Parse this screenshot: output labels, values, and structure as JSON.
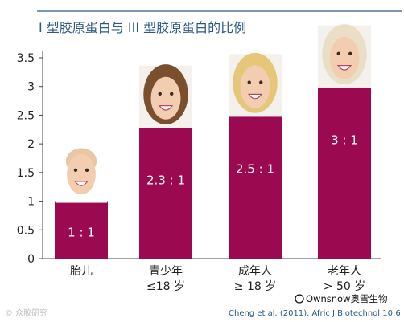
{
  "chart_data": {
    "type": "bar",
    "title": "I 型胶原蛋白与 III 型胶原蛋白的比例",
    "categories": [
      [
        "胎儿"
      ],
      [
        "青少年",
        "≤18 岁"
      ],
      [
        "成年人",
        "≥ 18 岁"
      ],
      [
        "老年人",
        "> 50 岁"
      ]
    ],
    "values": [
      1,
      2.3,
      2.5,
      3
    ],
    "bar_labels": [
      "1 : 1",
      "2.3 : 1",
      "2.5 : 1",
      "3 : 1"
    ],
    "ylim": [
      0,
      3.5
    ],
    "yticks": [
      "0",
      "0.5",
      "1",
      "1.5",
      "2",
      "2.5",
      "3",
      "3.5"
    ],
    "ytick_values": [
      0,
      0.5,
      1,
      1.5,
      2,
      2.5,
      3,
      3.5
    ],
    "bar_color": "#9b0a50",
    "title_color": "#2b5a86",
    "grid": false,
    "source": "Cheng et al. (2011). Afric J Biotechnol 10:6",
    "brand": "Ownsnow奥雪生物",
    "watermark": "© 众胶研究"
  }
}
